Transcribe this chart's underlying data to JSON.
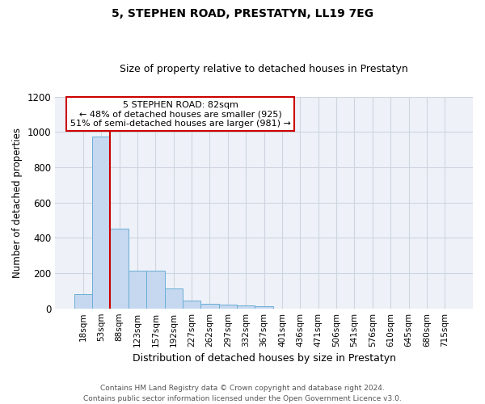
{
  "title": "5, STEPHEN ROAD, PRESTATYN, LL19 7EG",
  "subtitle": "Size of property relative to detached houses in Prestatyn",
  "xlabel": "Distribution of detached houses by size in Prestatyn",
  "ylabel": "Number of detached properties",
  "categories": [
    "18sqm",
    "53sqm",
    "88sqm",
    "123sqm",
    "157sqm",
    "192sqm",
    "227sqm",
    "262sqm",
    "297sqm",
    "332sqm",
    "367sqm",
    "401sqm",
    "436sqm",
    "471sqm",
    "506sqm",
    "541sqm",
    "576sqm",
    "610sqm",
    "645sqm",
    "680sqm",
    "715sqm"
  ],
  "values": [
    80,
    975,
    450,
    215,
    215,
    115,
    45,
    25,
    22,
    15,
    10,
    0,
    0,
    0,
    0,
    0,
    0,
    0,
    0,
    0,
    0
  ],
  "bar_color": "#c5d8f0",
  "bar_edge_color": "#6aaed6",
  "red_line_index": 2,
  "annotation_lines": [
    "5 STEPHEN ROAD: 82sqm",
    "← 48% of detached houses are smaller (925)",
    "51% of semi-detached houses are larger (981) →"
  ],
  "annotation_box_color": "#ffffff",
  "annotation_box_edge": "#cc0000",
  "red_line_color": "#cc0000",
  "grid_color": "#cdd5e0",
  "bg_color": "#eef2f8",
  "footer": "Contains HM Land Registry data © Crown copyright and database right 2024.\nContains public sector information licensed under the Open Government Licence v3.0.",
  "ylim": [
    0,
    1200
  ],
  "yticks": [
    0,
    200,
    400,
    600,
    800,
    1000,
    1200
  ],
  "title_fontsize": 10,
  "subtitle_fontsize": 9
}
